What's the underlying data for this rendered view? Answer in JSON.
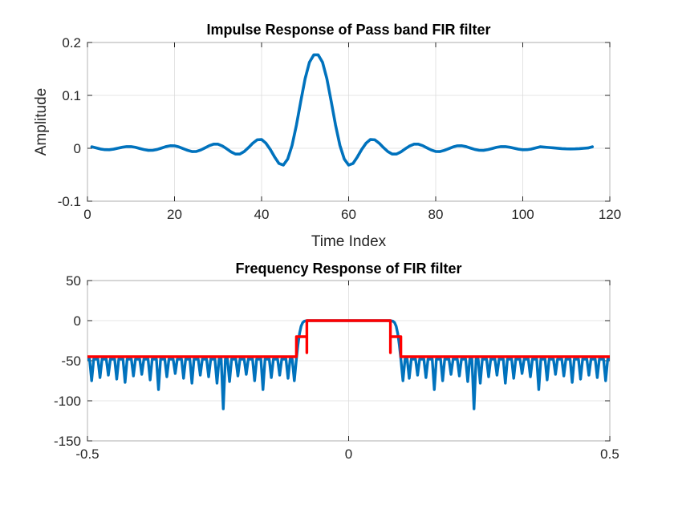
{
  "chart_data": [
    {
      "type": "line",
      "title": "Impulse Response of Pass band FIR filter",
      "xlabel": "Time Index",
      "ylabel": "Amplitude",
      "xlim": [
        0,
        120
      ],
      "ylim": [
        -0.1,
        0.2
      ],
      "xticks": [
        0,
        20,
        40,
        60,
        80,
        100,
        120
      ],
      "xtick_labels": [
        "0",
        "20",
        "40",
        "60",
        "80",
        "100",
        "120"
      ],
      "yticks": [
        -0.1,
        0,
        0.1,
        0.2
      ],
      "ytick_labels": [
        "-0.1",
        "0",
        "0.1",
        "0.2"
      ],
      "grid": true,
      "series": [
        {
          "color": "#0072BD",
          "x": [
            1,
            2,
            3,
            4,
            5,
            6,
            7,
            8,
            9,
            10,
            11,
            12,
            13,
            14,
            15,
            16,
            17,
            18,
            19,
            20,
            21,
            22,
            23,
            24,
            25,
            26,
            27,
            28,
            29,
            30,
            31,
            32,
            33,
            34,
            35,
            36,
            37,
            38,
            39,
            40,
            41,
            42,
            43,
            44,
            45,
            46,
            47,
            48,
            49,
            50,
            51,
            52,
            53,
            54,
            55,
            56,
            57,
            58,
            59,
            60,
            61,
            62,
            63,
            64,
            65,
            66,
            67,
            68,
            69,
            70,
            71,
            72,
            73,
            74,
            75,
            76,
            77,
            78,
            79,
            80,
            81,
            82,
            83,
            84,
            85,
            86,
            87,
            88,
            89,
            90,
            91,
            92,
            93,
            94,
            95,
            96,
            97,
            98,
            99,
            100,
            101,
            102,
            103,
            104,
            105,
            106,
            107,
            108,
            109,
            110,
            111,
            112,
            113,
            114,
            115,
            116
          ],
          "y": [
            0.0029,
            0.0007,
            -0.0014,
            -0.0026,
            -0.0027,
            -0.0016,
            0.0002,
            0.002,
            0.0032,
            0.0032,
            0.0019,
            -0.0003,
            -0.0025,
            -0.0039,
            -0.0038,
            -0.0022,
            0.0004,
            0.0031,
            0.0048,
            0.0047,
            0.0026,
            -0.0006,
            -0.0039,
            -0.0061,
            -0.006,
            -0.0033,
            0.0008,
            0.005,
            0.0079,
            0.0078,
            0.0043,
            -0.001,
            -0.0068,
            -0.0109,
            -0.0109,
            -0.0061,
            0.0014,
            0.0098,
            0.0161,
            0.0166,
            0.0096,
            -0.0022,
            -0.0164,
            -0.0287,
            -0.0317,
            -0.0204,
            0.0054,
            0.0436,
            0.0885,
            0.1315,
            0.1627,
            0.1766,
            0.1766,
            0.1627,
            0.1315,
            0.0885,
            0.0436,
            0.0054,
            -0.0204,
            -0.0317,
            -0.0287,
            -0.0164,
            -0.0022,
            0.0096,
            0.0166,
            0.0161,
            0.0098,
            0.0014,
            -0.0061,
            -0.0109,
            -0.0109,
            -0.0068,
            -0.001,
            0.0043,
            0.0078,
            0.0079,
            0.005,
            0.0008,
            -0.0033,
            -0.006,
            -0.0061,
            -0.0039,
            -0.0006,
            0.0026,
            0.0047,
            0.0048,
            0.0031,
            0.0004,
            -0.0022,
            -0.0038,
            -0.0039,
            -0.0025,
            -0.0003,
            0.0019,
            0.0032,
            0.0032,
            0.002,
            0.0002,
            -0.0016,
            -0.0027,
            -0.0026,
            -0.0014,
            0.0007,
            0.0029,
            0.0022,
            0.0015,
            0.0008,
            0.0001,
            -0.0006,
            -0.001,
            -0.0012,
            -0.001,
            -0.0006,
            0.0,
            0.0006,
            0.0029
          ]
        }
      ]
    },
    {
      "type": "line",
      "title": "Frequency Response of FIR filter",
      "xlabel": "",
      "ylabel": "",
      "xlim": [
        -0.5,
        0.5
      ],
      "ylim": [
        -150,
        50
      ],
      "xticks": [
        -0.5,
        0,
        0.5
      ],
      "xtick_labels": [
        "-0.5",
        "0",
        "0.5"
      ],
      "yticks": [
        -150,
        -100,
        -50,
        0,
        50
      ],
      "ytick_labels": [
        "-150",
        "-100",
        "-50",
        "0",
        "50"
      ],
      "grid": true,
      "series": [
        {
          "color": "#0072BD",
          "description_of_values": "magnitude in dB",
          "passband_edges": [
            -0.1,
            0.1
          ],
          "stopband_floor": -48,
          "notches": [
            [
              -0.492,
              -75
            ],
            [
              -0.476,
              -71
            ],
            [
              -0.46,
              -68
            ],
            [
              -0.444,
              -73
            ],
            [
              -0.428,
              -77
            ],
            [
              -0.412,
              -69
            ],
            [
              -0.396,
              -67
            ],
            [
              -0.38,
              -74
            ],
            [
              -0.364,
              -86
            ],
            [
              -0.348,
              -70
            ],
            [
              -0.332,
              -66
            ],
            [
              -0.316,
              -72
            ],
            [
              -0.3,
              -78
            ],
            [
              -0.284,
              -68
            ],
            [
              -0.268,
              -70
            ],
            [
              -0.252,
              -78
            ],
            [
              -0.24,
              -110
            ],
            [
              -0.228,
              -76
            ],
            [
              -0.212,
              -69
            ],
            [
              -0.196,
              -67
            ],
            [
              -0.18,
              -75
            ],
            [
              -0.164,
              -86
            ],
            [
              -0.148,
              -71
            ],
            [
              -0.132,
              -68
            ],
            [
              -0.116,
              -72
            ],
            [
              -0.104,
              -75
            ],
            [
              0.104,
              -75
            ],
            [
              0.116,
              -72
            ],
            [
              0.132,
              -68
            ],
            [
              0.148,
              -71
            ],
            [
              0.164,
              -86
            ],
            [
              0.18,
              -75
            ],
            [
              0.196,
              -67
            ],
            [
              0.212,
              -69
            ],
            [
              0.228,
              -76
            ],
            [
              0.24,
              -110
            ],
            [
              0.252,
              -78
            ],
            [
              0.268,
              -70
            ],
            [
              0.284,
              -68
            ],
            [
              0.3,
              -78
            ],
            [
              0.316,
              -72
            ],
            [
              0.332,
              -66
            ],
            [
              0.348,
              -70
            ],
            [
              0.364,
              -86
            ],
            [
              0.38,
              -74
            ],
            [
              0.396,
              -67
            ],
            [
              0.412,
              -69
            ],
            [
              0.428,
              -77
            ],
            [
              0.444,
              -73
            ],
            [
              0.46,
              -68
            ],
            [
              0.476,
              -71
            ],
            [
              0.492,
              -75
            ]
          ],
          "passband_curve": [
            [
              -0.1,
              -48
            ],
            [
              -0.097,
              -30
            ],
            [
              -0.094,
              -16
            ],
            [
              -0.091,
              -7
            ],
            [
              -0.088,
              -2.5
            ],
            [
              -0.085,
              -0.8
            ],
            [
              -0.082,
              -0.2
            ],
            [
              -0.08,
              0
            ],
            [
              0.08,
              0
            ],
            [
              0.082,
              -0.2
            ],
            [
              0.085,
              -0.8
            ],
            [
              0.088,
              -2.5
            ],
            [
              0.091,
              -7
            ],
            [
              0.094,
              -16
            ],
            [
              0.097,
              -30
            ],
            [
              0.1,
              -48
            ]
          ]
        },
        {
          "color": "#FF0000",
          "x": [
            -0.5,
            -0.1,
            -0.1,
            -0.08,
            -0.08,
            -0.08,
            0.08,
            0.08,
            0.08,
            0.1,
            0.1,
            0.5
          ],
          "y": [
            -45,
            -45,
            -20,
            -20,
            -40,
            0,
            0,
            -40,
            -20,
            -20,
            -45,
            -45
          ]
        }
      ]
    }
  ]
}
